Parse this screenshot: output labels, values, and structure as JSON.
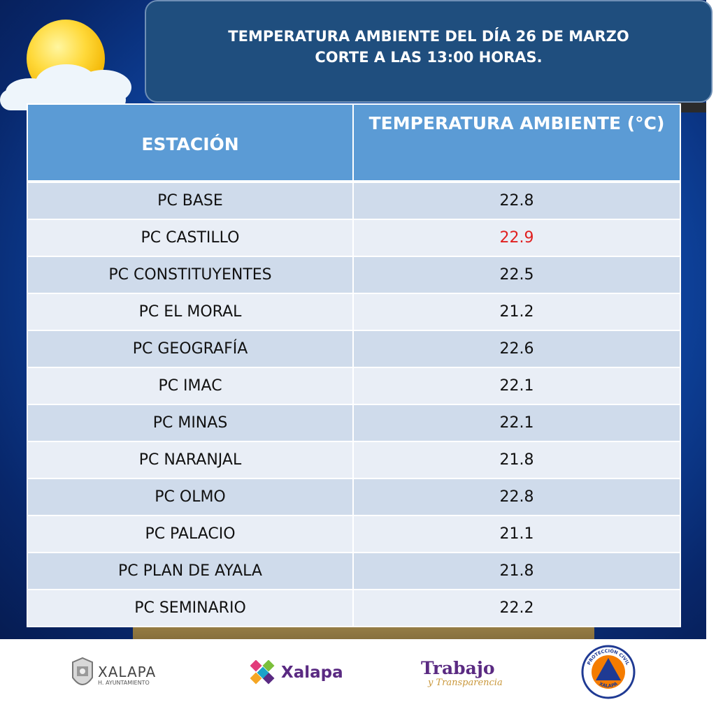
{
  "header": {
    "line1": "TEMPERATURA AMBIENTE DEL DÍA 26 DE MARZO",
    "line2": "CORTE A LAS 13:00 HORAS."
  },
  "table": {
    "col_station": "ESTACIÓN",
    "col_temp": "TEMPERATURA AMBIENTE (°C)",
    "rows": [
      {
        "station": "PC BASE",
        "temp": "22.8"
      },
      {
        "station": "PC CASTILLO",
        "temp": "22.9",
        "highlight": true
      },
      {
        "station": "PC CONSTITUYENTES",
        "temp": "22.5"
      },
      {
        "station": "PC EL MORAL",
        "temp": "21.2"
      },
      {
        "station": "PC GEOGRAFÍA",
        "temp": "22.6"
      },
      {
        "station": "PC IMAC",
        "temp": "22.1"
      },
      {
        "station": "PC MINAS",
        "temp": "22.1"
      },
      {
        "station": "PC NARANJAL",
        "temp": "21.8"
      },
      {
        "station": "PC OLMO",
        "temp": "22.8"
      },
      {
        "station": "PC PALACIO",
        "temp": "21.1"
      },
      {
        "station": "PC PLAN DE AYALA",
        "temp": "21.8"
      },
      {
        "station": "PC SEMINARIO",
        "temp": "22.2"
      }
    ],
    "highlight_color": "#e02020"
  },
  "footer": {
    "logo1_word": "XALAPA",
    "logo1_sub": "H. AYUNTAMIENTO",
    "logo2_word": "Xalapa",
    "logo3_word": "Trabajo",
    "logo3_sub": "y Transparencia",
    "logo4_top": "PROTECCIÓN CIVIL",
    "logo4_bottom": "XALAPA"
  },
  "icons": [
    "sun-cloud-icon",
    "xalapa-crest-icon",
    "xalapa-emblem-icon",
    "civil-protection-seal-icon"
  ]
}
